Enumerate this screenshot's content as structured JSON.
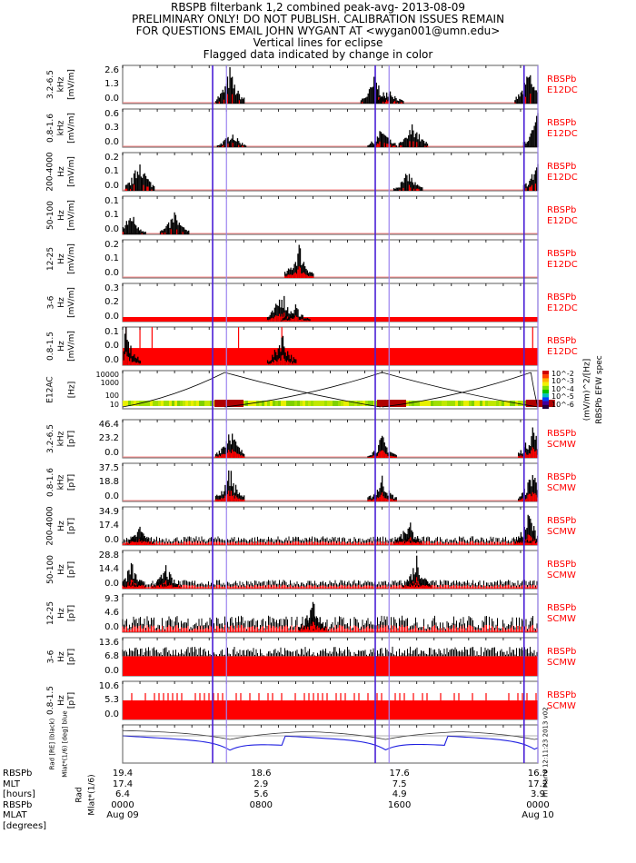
{
  "header": {
    "line1": "RBSPB filterbank 1,2 combined peak-avg- 2013-08-09",
    "line2": "PRELIMINARY ONLY! DO NOT PUBLISH. CALIBRATION ISSUES REMAIN",
    "line3": "FOR QUESTIONS EMAIL JOHN WYGANT AT <wygan001@umn.edu>",
    "line4": "Vertical lines for eclipse",
    "line5": "Flagged data indicated by change in color"
  },
  "colors": {
    "data": "#000000",
    "flag": "#ff0000",
    "eclipse_dark": "#4a1fd6",
    "eclipse_light": "#9b84f0",
    "axis": "#777777"
  },
  "chart_data": {
    "type": "line",
    "title": "RBSPB filterbank 1,2 combined peak-avg- 2013-08-09",
    "x_range_hours": [
      0,
      24
    ],
    "eclipse_hours": [
      5.2,
      6.0,
      14.6,
      15.4,
      23.2,
      24.0
    ],
    "panels": [
      {
        "label_top": "3.2-6.5",
        "label_mid": "kHz",
        "label_unit": "[mV/m]",
        "yticks": [
          "2.6",
          "1.3",
          "0.0"
        ],
        "ylim": [
          0,
          2.6
        ],
        "instrument": [
          "RBSPb",
          "E12DC"
        ],
        "peaks": [
          [
            6.2,
            2.6
          ],
          [
            14.6,
            2.2
          ],
          [
            15.4,
            1.3
          ],
          [
            23.5,
            2.6
          ]
        ]
      },
      {
        "label_top": "0.8-1.6",
        "label_mid": "kHz",
        "label_unit": "[mV/m]",
        "yticks": [
          "0.6",
          "0.3",
          "0.0"
        ],
        "ylim": [
          0,
          0.6
        ],
        "instrument": [
          "RBSPb",
          "E12DC"
        ],
        "peaks": [
          [
            6.3,
            0.3
          ],
          [
            15.0,
            0.35
          ],
          [
            16.8,
            0.45
          ],
          [
            24.0,
            0.6
          ]
        ]
      },
      {
        "label_top": "200-4000",
        "label_mid": "Hz",
        "label_unit": "[mV/m]",
        "yticks": [
          "0.2",
          "0.1",
          "0.0"
        ],
        "ylim": [
          0,
          0.2
        ],
        "instrument": [
          "RBSPb",
          "E12DC"
        ],
        "peaks": [
          [
            1.0,
            0.2
          ],
          [
            16.5,
            0.12
          ],
          [
            24.0,
            0.2
          ]
        ]
      },
      {
        "label_top": "50-100",
        "label_mid": "Hz",
        "label_unit": "[mV/m]",
        "yticks": [
          "0.1",
          "0.1",
          "0.0"
        ],
        "ylim": [
          0,
          0.15
        ],
        "instrument": [
          "RBSPb",
          "E12DC"
        ],
        "peaks": [
          [
            0.5,
            0.1
          ],
          [
            3,
            0.1
          ]
        ]
      },
      {
        "label_top": "12-25",
        "label_mid": "Hz",
        "label_unit": "[mV/m]",
        "yticks": [
          "0.2",
          "0.1",
          "0.0"
        ],
        "ylim": [
          0,
          0.2
        ],
        "instrument": [
          "RBSPb",
          "E12DC"
        ],
        "peaks": [
          [
            10.2,
            0.2
          ]
        ]
      },
      {
        "label_top": "3-6",
        "label_mid": "Hz",
        "label_unit": "[mV/m]",
        "yticks": [
          "0.3",
          "0.2",
          "0.0"
        ],
        "ylim": [
          0,
          0.3
        ],
        "instrument": [
          "RBSPb",
          "E12DC"
        ],
        "peaks": [
          [
            9.2,
            0.3
          ],
          [
            10,
            0.15
          ]
        ]
      },
      {
        "label_top": "0.8-1.5",
        "label_mid": "Hz",
        "label_unit": "[mV/m]",
        "yticks": [
          "0.1",
          "0.0",
          "0.0"
        ],
        "ylim": [
          0,
          0.1
        ],
        "instrument": [
          "RBSPb",
          "E12DC"
        ],
        "peaks": [
          [
            0.2,
            0.1
          ],
          [
            9.2,
            0.1
          ]
        ]
      },
      {
        "label_top": "E12AC",
        "label_mid": "",
        "label_unit": "[Hz]",
        "yticks": [
          "10000",
          "1000",
          "100",
          "10"
        ],
        "ylim": [
          10,
          10000
        ],
        "instrument": [],
        "spectrogram": true
      },
      {
        "label_top": "3.2-6.5",
        "label_mid": "kHz",
        "label_unit": "[pT]",
        "yticks": [
          "46.4",
          "23.2",
          "0.0"
        ],
        "ylim": [
          0,
          46.4
        ],
        "instrument": [
          "RBSPb",
          "SCMW"
        ],
        "peaks": [
          [
            6.2,
            46
          ],
          [
            15.0,
            30
          ],
          [
            23.7,
            46
          ]
        ]
      },
      {
        "label_top": "0.8-1.6",
        "label_mid": "kHz",
        "label_unit": "[pT]",
        "yticks": [
          "37.5",
          "18.8",
          "0.0"
        ],
        "ylim": [
          0,
          37.5
        ],
        "instrument": [
          "RBSPb",
          "SCMW"
        ],
        "peaks": [
          [
            6.2,
            37
          ],
          [
            15.0,
            28
          ],
          [
            23.7,
            37
          ]
        ]
      },
      {
        "label_top": "200-4000",
        "label_mid": "Hz",
        "label_unit": "[pT]",
        "yticks": [
          "34.9",
          "17.4",
          "0.0"
        ],
        "ylim": [
          0,
          34.9
        ],
        "instrument": [
          "RBSPb",
          "SCMW"
        ],
        "peaks": [
          [
            1,
            20
          ],
          [
            16.5,
            28
          ],
          [
            23.5,
            34
          ]
        ]
      },
      {
        "label_top": "50-100",
        "label_mid": "Hz",
        "label_unit": "[pT]",
        "yticks": [
          "28.8",
          "14.4",
          "0.0"
        ],
        "ylim": [
          0,
          28.8
        ],
        "instrument": [
          "RBSPb",
          "SCMW"
        ],
        "peaks": [
          [
            0.5,
            22
          ],
          [
            2.5,
            20
          ],
          [
            17,
            28
          ]
        ]
      },
      {
        "label_top": "12-25",
        "label_mid": "Hz",
        "label_unit": "[pT]",
        "yticks": [
          "9.3",
          "4.6",
          "0.0"
        ],
        "ylim": [
          0,
          9.3
        ],
        "instrument": [
          "RBSPb",
          "SCMW"
        ],
        "peaks": [
          [
            11,
            9.3
          ]
        ]
      },
      {
        "label_top": "3-6",
        "label_mid": "Hz",
        "label_unit": "[pT]",
        "yticks": [
          "13.6",
          "6.8",
          "0.0"
        ],
        "ylim": [
          0,
          13.6
        ],
        "instrument": [
          "RBSPb",
          "SCMW"
        ],
        "level": 7
      },
      {
        "label_top": "0.8-1.5",
        "label_mid": "Hz",
        "label_unit": "[pT]",
        "yticks": [
          "10.6",
          "5.3",
          "0.0"
        ],
        "ylim": [
          0,
          10.6
        ],
        "instrument": [
          "RBSPb",
          "SCMW"
        ],
        "level": 5.3
      },
      {
        "label_top": "Rad [RE] (black)",
        "label_mid": "Mlat*(1/6) [deg] blue",
        "label_unit": "",
        "yticks": [],
        "instrument": [],
        "orbit": true
      }
    ],
    "colorbar": {
      "labels": [
        "10^-2",
        "10^-3",
        "10^-4",
        "10^-5",
        "10^-6"
      ],
      "title": "(mV/m)^2/[Hz]",
      "subtitle": "RBSPb EFW spec"
    },
    "x_axis": {
      "row_labels": [
        "RBSPb",
        "MLT",
        "[hours]",
        "RBSPb",
        "MLAT",
        "[degrees]"
      ],
      "inner_labels": [
        "Rad",
        "Mlat*(1/6)"
      ],
      "ticks": [
        {
          "rad": "19.4",
          "mlt": "17.4",
          "mlat": "6.4",
          "time": "0000",
          "date": "Aug 09"
        },
        {
          "rad": "18.6",
          "mlt": "2.9",
          "mlat": "5.6",
          "time": "0800",
          "date": ""
        },
        {
          "rad": "17.6",
          "mlt": "7.5",
          "mlat": "4.9",
          "time": "1600",
          "date": ""
        },
        {
          "rad": "16.2",
          "mlt": "17.2",
          "mlat": "3.9",
          "time": "0000",
          "date": "Aug 10"
        }
      ]
    },
    "footer_stamp": "Fri Mar 8 12:11:23 2013 v02"
  }
}
